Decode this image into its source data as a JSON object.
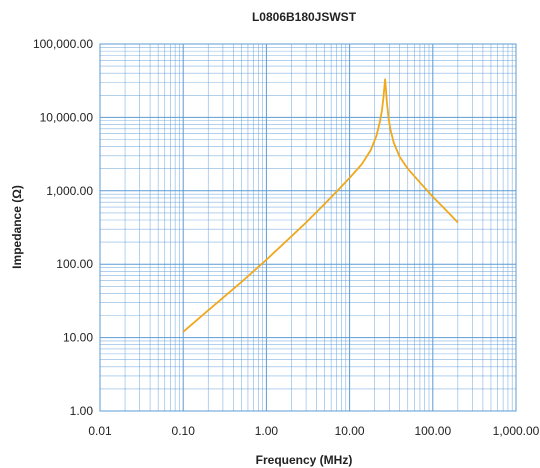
{
  "chart_data": {
    "type": "line",
    "title": "L0806B180JSWST",
    "xlabel": "Frequency (MHz)",
    "ylabel": "Impedance (Ω)",
    "x_scale": "log",
    "y_scale": "log",
    "xlim": [
      0.01,
      1000
    ],
    "ylim": [
      1,
      100000
    ],
    "x_ticks": [
      0.01,
      0.1,
      1,
      10,
      100,
      1000
    ],
    "x_tick_labels": [
      "0.01",
      "0.10",
      "1.00",
      "10.00",
      "100.00",
      "1,000.00"
    ],
    "y_ticks": [
      1,
      10,
      100,
      1000,
      10000,
      100000
    ],
    "y_tick_labels": [
      "1.00",
      "10.00",
      "100.00",
      "1,000.00",
      "10,000.00",
      "100,000.00"
    ],
    "grid": true,
    "series": [
      {
        "color": "#f0a81c",
        "x": [
          0.1,
          0.2,
          0.5,
          1,
          2,
          3,
          5,
          7,
          10,
          14,
          18,
          21,
          23,
          24.5,
          25.5,
          26.2,
          26.7,
          27.2,
          28,
          29.5,
          31,
          34,
          40,
          50,
          70,
          100,
          150,
          200
        ],
        "y": [
          12,
          23.5,
          57,
          115,
          240,
          370,
          660,
          980,
          1500,
          2300,
          3600,
          5600,
          8500,
          12500,
          18500,
          26000,
          33000,
          26000,
          16500,
          9500,
          6800,
          4500,
          2900,
          2000,
          1300,
          830,
          520,
          370
        ]
      }
    ]
  }
}
